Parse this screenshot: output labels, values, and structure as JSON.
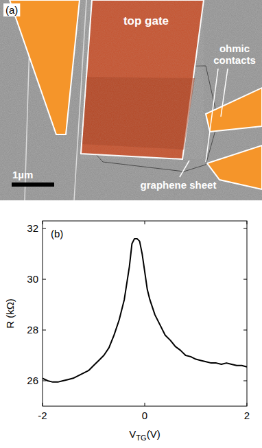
{
  "panel_a": {
    "label": "(a)",
    "top_gate": "top gate",
    "ohmic_contacts": "ohmic contacts",
    "graphene_sheet": "graphene sheet",
    "scale_bar": "1µm"
  },
  "chart_data": {
    "type": "line",
    "panel_label": "(b)",
    "xlabel": {
      "main": "V",
      "sub": "TG",
      "unit": "(V)"
    },
    "ylabel": "R (kΩ)",
    "x": [
      -2,
      -1.9,
      -1.8,
      -1.7,
      -1.6,
      -1.5,
      -1.4,
      -1.3,
      -1.2,
      -1.1,
      -1.0,
      -0.9,
      -0.8,
      -0.7,
      -0.6,
      -0.5,
      -0.4,
      -0.3,
      -0.25,
      -0.2,
      -0.15,
      -0.1,
      -0.05,
      0,
      0.05,
      0.1,
      0.2,
      0.3,
      0.4,
      0.5,
      0.6,
      0.7,
      0.8,
      0.9,
      1.0,
      1.1,
      1.2,
      1.3,
      1.4,
      1.5,
      1.6,
      1.7,
      1.8,
      1.9,
      2.0
    ],
    "values": [
      26.1,
      26.0,
      25.95,
      25.95,
      26.0,
      26.05,
      26.1,
      26.2,
      26.3,
      26.4,
      26.6,
      26.8,
      27.0,
      27.3,
      27.8,
      28.4,
      29.2,
      30.5,
      31.4,
      31.6,
      31.6,
      31.5,
      31.0,
      30.3,
      29.6,
      29.2,
      28.6,
      28.2,
      27.8,
      27.6,
      27.35,
      27.2,
      27.0,
      26.95,
      26.85,
      26.8,
      26.75,
      26.7,
      26.7,
      26.65,
      26.7,
      26.65,
      26.6,
      26.6,
      26.55
    ],
    "color": "#000000",
    "xlim": [
      -2,
      2
    ],
    "ylim": [
      25,
      32.3
    ],
    "xticks": [
      -2,
      0,
      2
    ],
    "yticks": [
      26,
      28,
      30,
      32
    ]
  }
}
